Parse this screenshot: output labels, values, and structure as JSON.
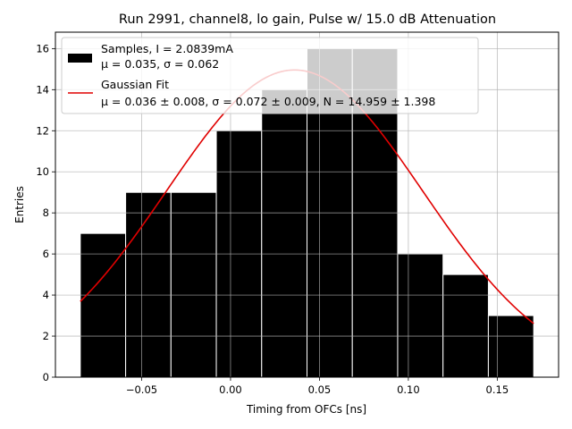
{
  "chart_data": {
    "type": "bar",
    "title": "Run 2991, channel8, lo gain, Pulse w/ 15.0 dB Attenuation",
    "xlabel": "Timing from OFCs [ns]",
    "ylabel": "Entries",
    "xlim": [
      -0.0985,
      0.1845
    ],
    "ylim": [
      0,
      16.8
    ],
    "grid": true,
    "legend_position": "top-left",
    "x_ticks": [
      -0.05,
      0.0,
      0.05,
      0.1,
      0.15
    ],
    "x_tick_labels": [
      "−0.05",
      "0.00",
      "0.05",
      "0.10",
      "0.15"
    ],
    "y_ticks": [
      0,
      2,
      4,
      6,
      8,
      10,
      12,
      14,
      16
    ],
    "bins": {
      "edges": [
        -0.0845,
        -0.059,
        -0.0335,
        -0.008,
        0.0175,
        0.043,
        0.0685,
        0.094,
        0.1195,
        0.145,
        0.1705
      ],
      "counts": [
        7,
        9,
        9,
        12,
        14,
        16,
        16,
        6,
        5,
        3
      ],
      "color": "#000000",
      "edge_color": "#ffffff"
    },
    "fit": {
      "mu": 0.036,
      "sigma": 0.072,
      "N": 14.959,
      "x_range": [
        -0.0845,
        0.1705
      ],
      "color": "#e00000"
    },
    "legend": [
      {
        "kind": "patch",
        "line1": "Samples, I = 2.0839mA",
        "line2": "μ = 0.035, σ = 0.062"
      },
      {
        "kind": "line",
        "line1": "Gaussian Fit",
        "line2": "μ = 0.036 ± 0.008, σ = 0.072 ± 0.009, N = 14.959 ± 1.398"
      }
    ]
  }
}
